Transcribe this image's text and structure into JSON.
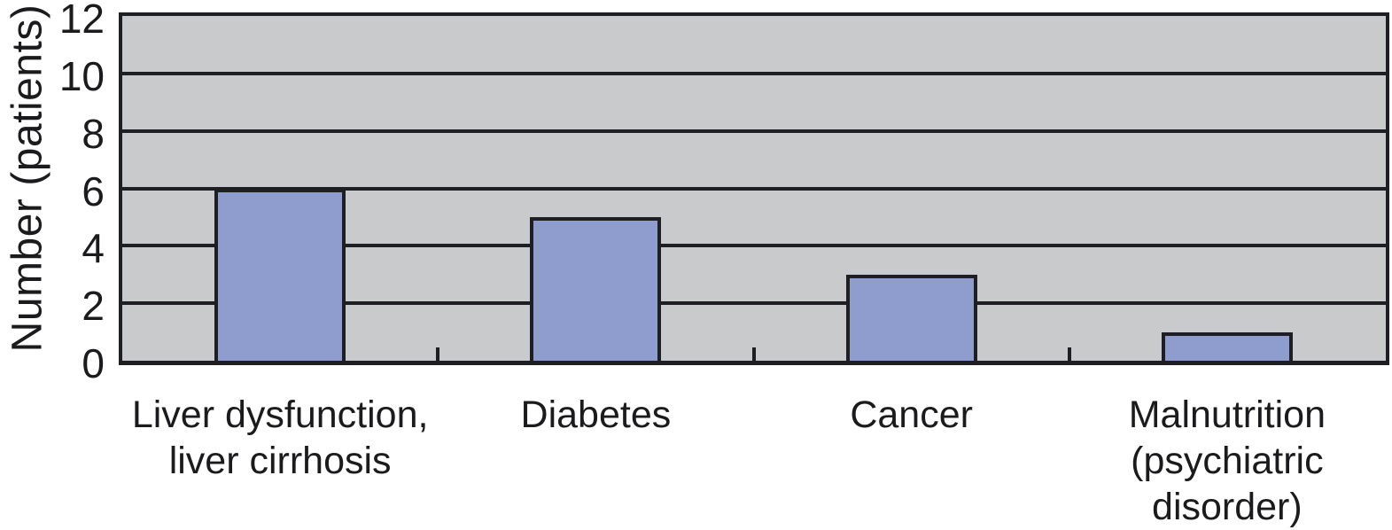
{
  "chart_data": {
    "type": "bar",
    "title": "",
    "xlabel": "",
    "ylabel": "Number (patients)",
    "categories": [
      "Liver dysfunction,\nliver cirrhosis",
      "Diabetes",
      "Cancer",
      "Malnutrition\n(psychiatric\ndisorder)"
    ],
    "values": [
      6,
      5,
      3,
      1
    ],
    "ylim": [
      0,
      12
    ],
    "yticks": [
      0,
      2,
      4,
      6,
      8,
      10,
      12
    ],
    "gridlines": "horizontal at every y tick",
    "legend": "none",
    "colors": {
      "bar_fill": "#8f9cce",
      "bar_border": "#1e1e23",
      "plot_background": "#c9cacb",
      "line": "#1e1e23",
      "text": "#1b1b1d",
      "page_background": "#ffffff"
    }
  }
}
